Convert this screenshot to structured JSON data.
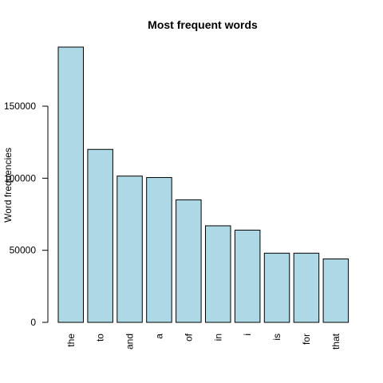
{
  "chart_data": {
    "type": "bar",
    "title": "Most frequent words",
    "xlabel": "",
    "ylabel": "Word frequencies",
    "categories": [
      "the",
      "to",
      "and",
      "a",
      "of",
      "in",
      "i",
      "is",
      "for",
      "that"
    ],
    "values": [
      191000,
      120000,
      101500,
      100500,
      85000,
      67000,
      64000,
      48000,
      48000,
      44000
    ],
    "yticks": [
      0,
      50000,
      100000,
      150000
    ],
    "ytick_labels": [
      "0",
      "50000",
      "100000",
      "150000"
    ],
    "ylim": [
      0,
      191000
    ],
    "grid": false,
    "bar_color": "#add8e6",
    "bar_border_color": "#000000"
  }
}
